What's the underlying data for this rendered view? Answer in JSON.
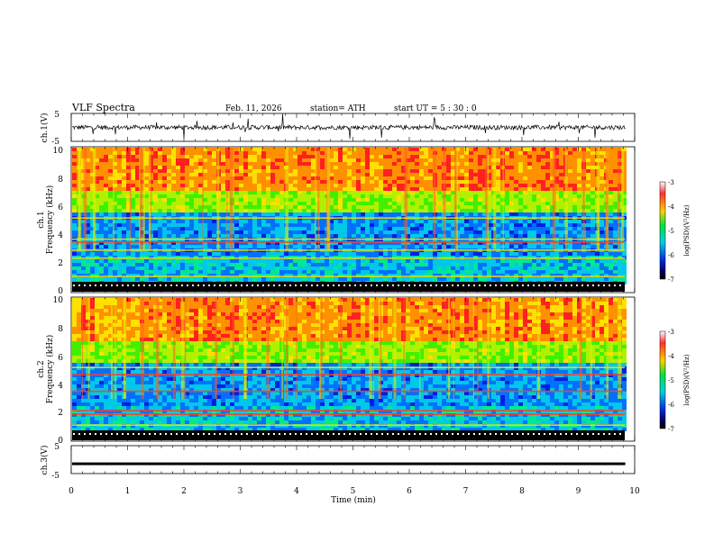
{
  "header": {
    "title": "VLF  Spectra",
    "date": "Feb. 11, 2026",
    "station": "station= ATH",
    "start": "start  UT  =   5  : 30 : 0"
  },
  "chart_data": [
    {
      "type": "line",
      "id": "ch1-waveform",
      "ylabel": "ch.1(V)",
      "ylim": [
        -5,
        5
      ],
      "yticks": [
        "5",
        "-5"
      ],
      "baseline_value": 0
    },
    {
      "type": "heatmap",
      "id": "ch1-spectrogram",
      "ylabel": "ch.1\nFrequency (kHz)",
      "ylabel_lines": [
        "ch.1",
        "Frequency (kHz)"
      ],
      "ylim": [
        0,
        10
      ],
      "yticks": [
        "0",
        "2",
        "4",
        "6",
        "8",
        "10"
      ],
      "colorbar": {
        "label": "log(PSD)(V²/Hz)",
        "ticks": [
          "-3",
          "-4",
          "-5",
          "-6",
          "-7"
        ],
        "range": [
          -7,
          -3
        ]
      },
      "lines_khz": [
        0.5,
        1.1,
        2.35,
        2.9,
        3.45,
        3.65,
        5.1
      ]
    },
    {
      "type": "heatmap",
      "id": "ch2-spectrogram",
      "ylabel": "ch.2\nFrequency (kHz)",
      "ylabel_lines": [
        "ch.2",
        "Frequency (kHz)"
      ],
      "ylim": [
        0,
        10
      ],
      "yticks": [
        "0",
        "2",
        "4",
        "6",
        "8",
        "10"
      ],
      "colorbar": {
        "label": "log(PSD)(V²/Hz)",
        "ticks": [
          "-3",
          "-4",
          "-5",
          "-6",
          "-7"
        ],
        "range": [
          -7,
          -3
        ]
      },
      "lines_khz": [
        0.5,
        1.1,
        1.85,
        2.1,
        3.45,
        4.6,
        5.1
      ]
    },
    {
      "type": "line",
      "id": "ch3-waveform",
      "ylabel": "ch.3(V)",
      "ylim": [
        -5,
        5
      ],
      "yticks": [
        "5",
        "-5"
      ],
      "baseline_value": -1.5
    }
  ],
  "xaxis": {
    "label": "Time  (min)",
    "xlim": [
      0,
      10
    ],
    "ticks": [
      "0",
      "1",
      "2",
      "3",
      "4",
      "5",
      "6",
      "7",
      "8",
      "9",
      "10"
    ]
  }
}
